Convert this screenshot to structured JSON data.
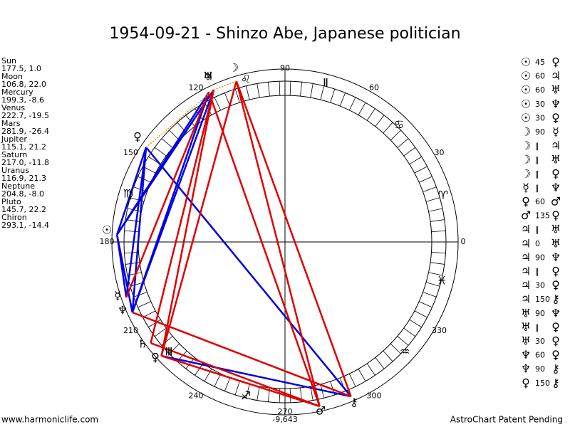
{
  "title": "1954-09-21 - Shinzo Abe, Japanese politician",
  "planets": [
    {
      "name": "Sun",
      "pos": "177.5, 1.0",
      "glyph": "☉"
    },
    {
      "name": "Moon",
      "pos": "106.8, 22.0",
      "glyph": "☽"
    },
    {
      "name": "Mercury",
      "pos": "199.3, -8.6",
      "glyph": "☿"
    },
    {
      "name": "Venus",
      "pos": "222.7, -19.5",
      "glyph": "♀"
    },
    {
      "name": "Mars",
      "pos": "281.9, -26.4",
      "glyph": "♂"
    },
    {
      "name": "Jupiter",
      "pos": "115.1, 21.2",
      "glyph": "♃"
    },
    {
      "name": "Saturn",
      "pos": "217.0, -11.8",
      "glyph": "♄"
    },
    {
      "name": "Uranus",
      "pos": "116.9, 21.3",
      "glyph": "♅"
    },
    {
      "name": "Neptune",
      "pos": "204.8, -8.0",
      "glyph": "♆"
    },
    {
      "name": "Pluto",
      "pos": "145.7, 22.2",
      "glyph": "♀"
    },
    {
      "name": "Chiron",
      "pos": "293.1, -14.4",
      "glyph": "⚷"
    }
  ],
  "aspects": [
    {
      "a": "☉",
      "asp": "45",
      "b": "♀"
    },
    {
      "a": "☉",
      "asp": "60",
      "b": "♃"
    },
    {
      "a": "☉",
      "asp": "60",
      "b": "♅"
    },
    {
      "a": "☉",
      "asp": "30",
      "b": "♆"
    },
    {
      "a": "☉",
      "asp": "30",
      "b": "♀"
    },
    {
      "a": "☽",
      "asp": "90",
      "b": "☿"
    },
    {
      "a": "☽",
      "asp": "‖",
      "b": "♃"
    },
    {
      "a": "☽",
      "asp": "‖",
      "b": "♅"
    },
    {
      "a": "☽",
      "asp": "‖",
      "b": "♀"
    },
    {
      "a": "☿",
      "asp": "‖",
      "b": "♆"
    },
    {
      "a": "♀",
      "asp": "60",
      "b": "♂"
    },
    {
      "a": "♂",
      "asp": "135",
      "b": "♀"
    },
    {
      "a": "♃",
      "asp": "‖",
      "b": "♅"
    },
    {
      "a": "♃",
      "asp": "0",
      "b": "♅"
    },
    {
      "a": "♃",
      "asp": "90",
      "b": "♆"
    },
    {
      "a": "♃",
      "asp": "‖",
      "b": "♀"
    },
    {
      "a": "♃",
      "asp": "30",
      "b": "♀"
    },
    {
      "a": "♃",
      "asp": "150",
      "b": "⚷"
    },
    {
      "a": "♅",
      "asp": "90",
      "b": "♆"
    },
    {
      "a": "♅",
      "asp": "‖",
      "b": "♀"
    },
    {
      "a": "♅",
      "asp": "30",
      "b": "♀"
    },
    {
      "a": "♆",
      "asp": "60",
      "b": "♀"
    },
    {
      "a": "♆",
      "asp": "90",
      "b": "⚷"
    },
    {
      "a": "♀",
      "asp": "150",
      "b": "⚷"
    }
  ],
  "degree_labels": [
    "90",
    "60",
    "30",
    "0",
    "330",
    "300",
    "270",
    "240",
    "210",
    "180",
    "150",
    "120"
  ],
  "signs": [
    "Ⅱ",
    "♋",
    "♈",
    "♓",
    "♒",
    "♐",
    "Ⅲ",
    "♍",
    "♌"
  ],
  "bottom_value": "-9,643",
  "footer_left": "www.harmoniclife.com",
  "footer_right": "AstroChart Patent Pending"
}
